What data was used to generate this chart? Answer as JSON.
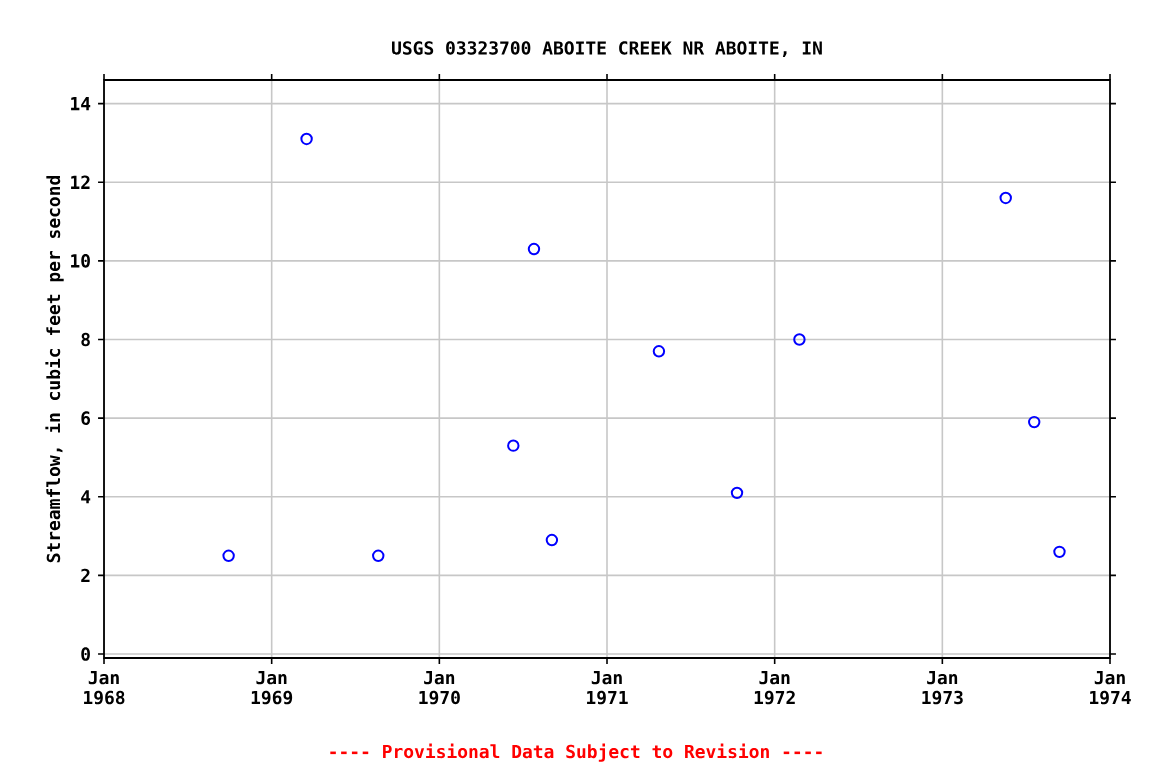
{
  "chart_data": {
    "type": "scatter",
    "title": "USGS 03323700 ABOITE CREEK NR ABOITE, IN",
    "ylabel": "Streamflow, in cubic feet per second",
    "annotations": [
      "---- Provisional Data Subject to Revision ----"
    ],
    "series": [
      {
        "color": "#0000ff",
        "x": [
          "1968-09-29",
          "1969-03-18",
          "1969-08-21",
          "1970-06-11",
          "1970-07-26",
          "1970-09-03",
          "1971-04-24",
          "1971-10-11",
          "1972-02-24",
          "1973-05-19",
          "1973-07-20",
          "1973-09-13"
        ],
        "values": [
          2.5,
          13.1,
          2.5,
          5.3,
          10.3,
          2.9,
          7.7,
          4.1,
          8.0,
          11.6,
          5.9,
          2.6
        ]
      }
    ],
    "xlim": [
      "1968-01-01",
      "1974-01-01"
    ],
    "xticks": [
      {
        "value": "1968-01-01",
        "label": "Jan 1968"
      },
      {
        "value": "1969-01-01",
        "label": "Jan 1969"
      },
      {
        "value": "1970-01-01",
        "label": "Jan 1970"
      },
      {
        "value": "1971-01-01",
        "label": "Jan 1971"
      },
      {
        "value": "1972-01-01",
        "label": "Jan 1972"
      },
      {
        "value": "1973-01-01",
        "label": "Jan 1973"
      },
      {
        "value": "1974-01-01",
        "label": "Jan 1974"
      }
    ],
    "ylim": [
      -0.1,
      14.6
    ],
    "yticks": [
      0,
      2,
      4,
      6,
      8,
      10,
      12,
      14
    ],
    "grid": true,
    "marker": "circle"
  }
}
